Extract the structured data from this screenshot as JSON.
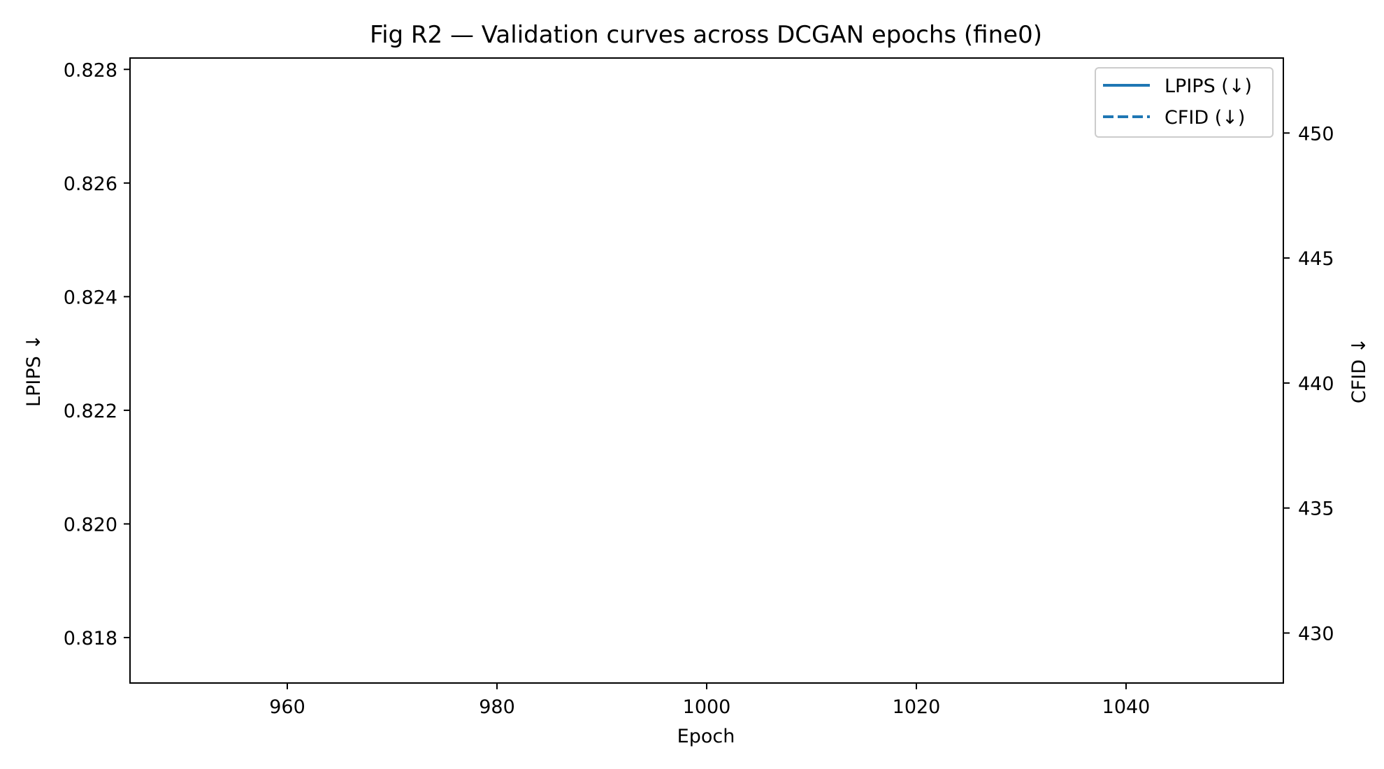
{
  "chart_data": {
    "type": "line",
    "title": "Fig R2 — Validation curves across DCGAN epochs (fine0)",
    "xlabel": "Epoch",
    "ylabel": "LPIPS ↓",
    "y2label": "CFID ↓",
    "xlim": [
      945,
      1055
    ],
    "ylim": [
      0.8172,
      0.8282
    ],
    "y2lim": [
      428,
      453
    ],
    "xticks": [
      960,
      980,
      1000,
      1020,
      1040
    ],
    "xtick_labels": [
      "960",
      "980",
      "1000",
      "1020",
      "1040"
    ],
    "yticks": [
      0.818,
      0.82,
      0.822,
      0.824,
      0.826,
      0.828
    ],
    "ytick_labels": [
      "0.818",
      "0.820",
      "0.822",
      "0.824",
      "0.826",
      "0.828"
    ],
    "y2ticks": [
      430,
      435,
      440,
      445,
      450
    ],
    "y2tick_labels": [
      "430",
      "435",
      "440",
      "445",
      "450"
    ],
    "grid": false,
    "legend_position": "top-right",
    "series": [
      {
        "name": "LPIPS (↓)",
        "axis": "left",
        "style": "solid",
        "color": "#1f77b4",
        "x": [],
        "y": []
      },
      {
        "name": "CFID (↓)",
        "axis": "right",
        "style": "dashed",
        "color": "#1f77b4",
        "x": [],
        "y": []
      }
    ]
  }
}
